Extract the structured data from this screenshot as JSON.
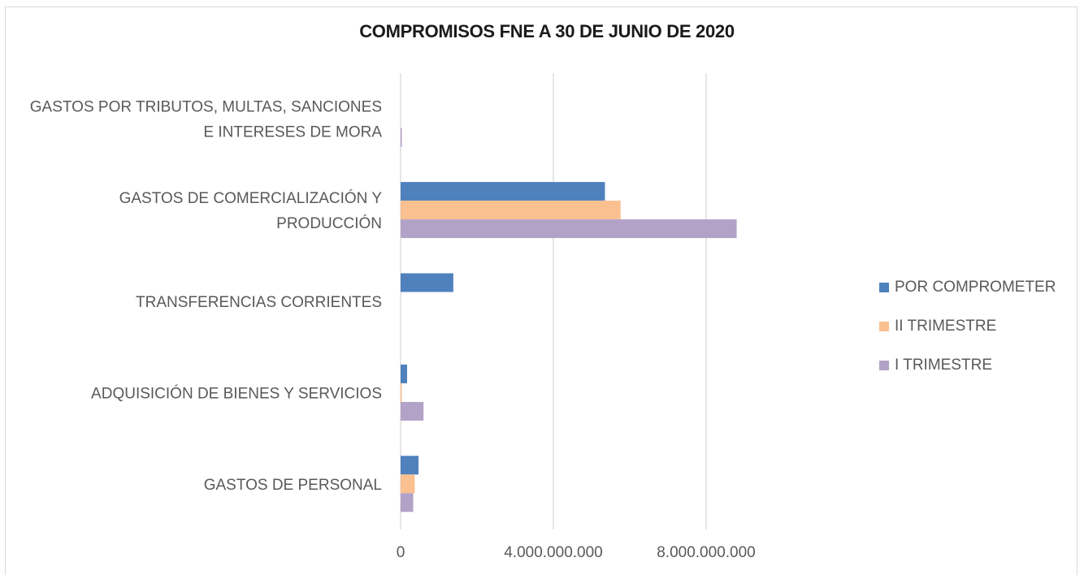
{
  "chart_data": {
    "type": "bar",
    "orientation": "horizontal",
    "title": "COMPROMISOS FNE A 30 DE JUNIO DE 2020",
    "categories": [
      [
        "GASTOS POR TRIBUTOS, MULTAS, SANCIONES",
        "E INTERESES DE MORA"
      ],
      [
        "GASTOS DE COMERCIALIZACIÓN Y",
        "PRODUCCIÓN"
      ],
      [
        "TRANSFERENCIAS CORRIENTES"
      ],
      [
        "ADQUISICIÓN DE BIENES Y SERVICIOS"
      ],
      [
        "GASTOS DE PERSONAL"
      ]
    ],
    "series": [
      {
        "name": "POR COMPROMETER",
        "color": "#4f81bd",
        "values": [
          0,
          5350000000,
          1380000000,
          170000000,
          470000000
        ]
      },
      {
        "name": "II TRIMESTRE",
        "color": "#fac090",
        "values": [
          0,
          5760000000,
          0,
          30000000,
          370000000
        ]
      },
      {
        "name": "I TRIMESTRE",
        "color": "#b2a2c7",
        "values": [
          30000000,
          8800000000,
          0,
          600000000,
          330000000
        ]
      }
    ],
    "xlim": [
      0,
      12000000000
    ],
    "xticks": [
      0,
      4000000000,
      8000000000
    ],
    "xtick_labels": [
      "0",
      "4.000.000.000",
      "8.000.000.000"
    ],
    "grid": true,
    "legend_position": "right"
  }
}
